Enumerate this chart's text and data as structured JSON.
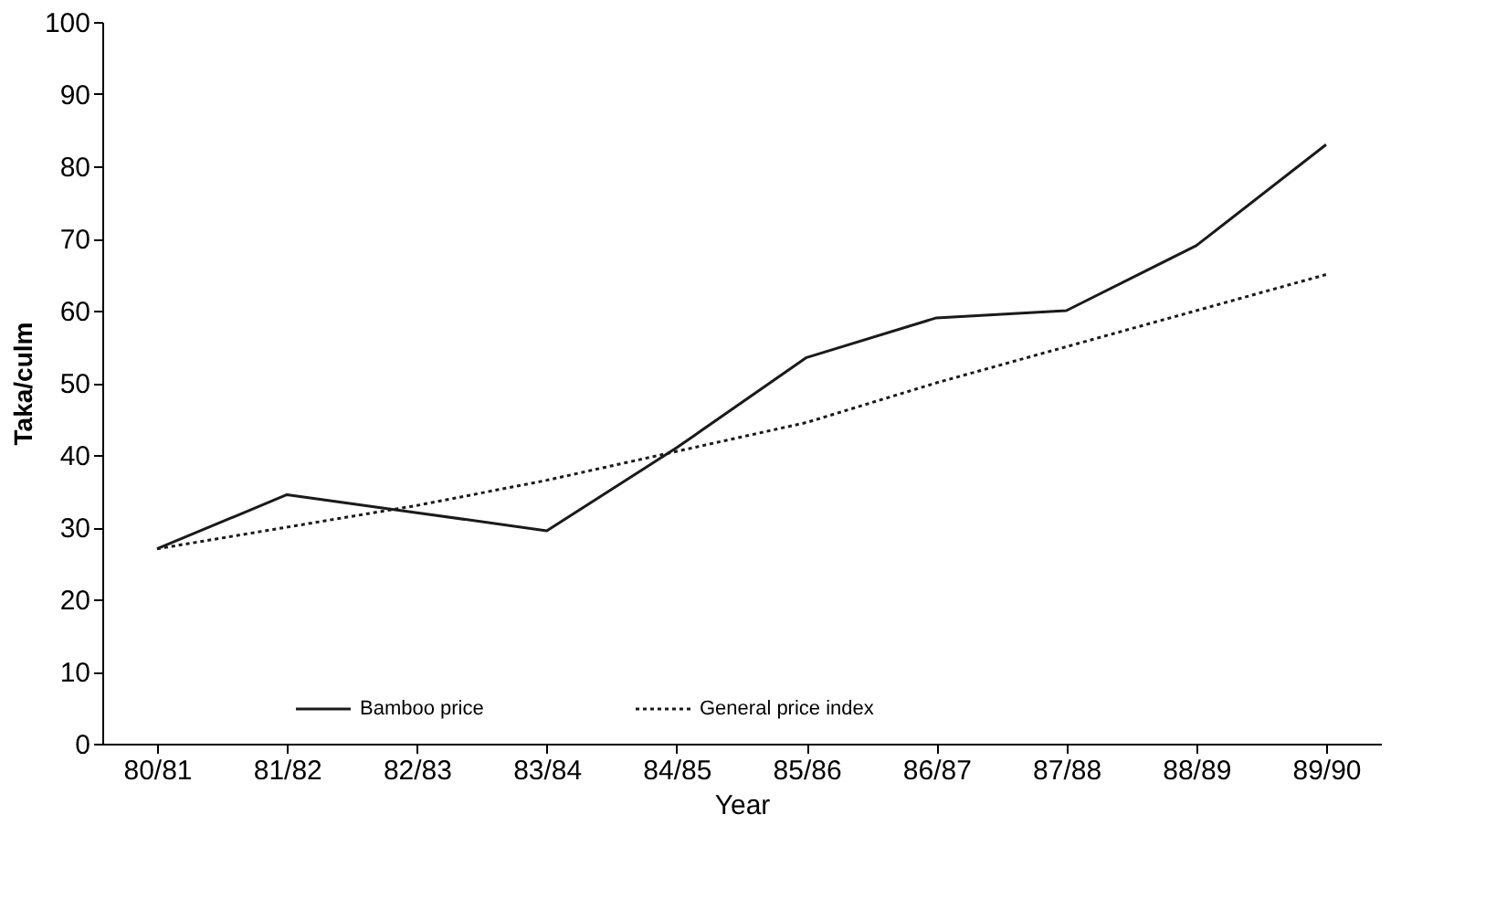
{
  "chart_data": {
    "type": "line",
    "xlabel": "Year",
    "ylabel": "Taka/culm",
    "categories": [
      "80/81",
      "81/82",
      "82/83",
      "83/84",
      "84/85",
      "85/86",
      "86/87",
      "87/88",
      "88/89",
      "89/90"
    ],
    "series": [
      {
        "name": "Bamboo price",
        "color": "#1a1a1a",
        "line_style": "solid",
        "values": [
          27,
          34.5,
          32,
          29.5,
          41,
          53.5,
          59,
          60,
          69,
          83
        ]
      },
      {
        "name": "General price index",
        "color": "#1a1a1a",
        "line_style": "dotted",
        "values": [
          27,
          30,
          33,
          36.5,
          40.5,
          44.5,
          50,
          55,
          60,
          65
        ]
      }
    ],
    "ylim": [
      0,
      100
    ],
    "yticks": [
      0,
      10,
      20,
      30,
      40,
      50,
      60,
      70,
      80,
      90,
      100
    ],
    "grid": false,
    "legend": "bottom",
    "marker": "none"
  }
}
